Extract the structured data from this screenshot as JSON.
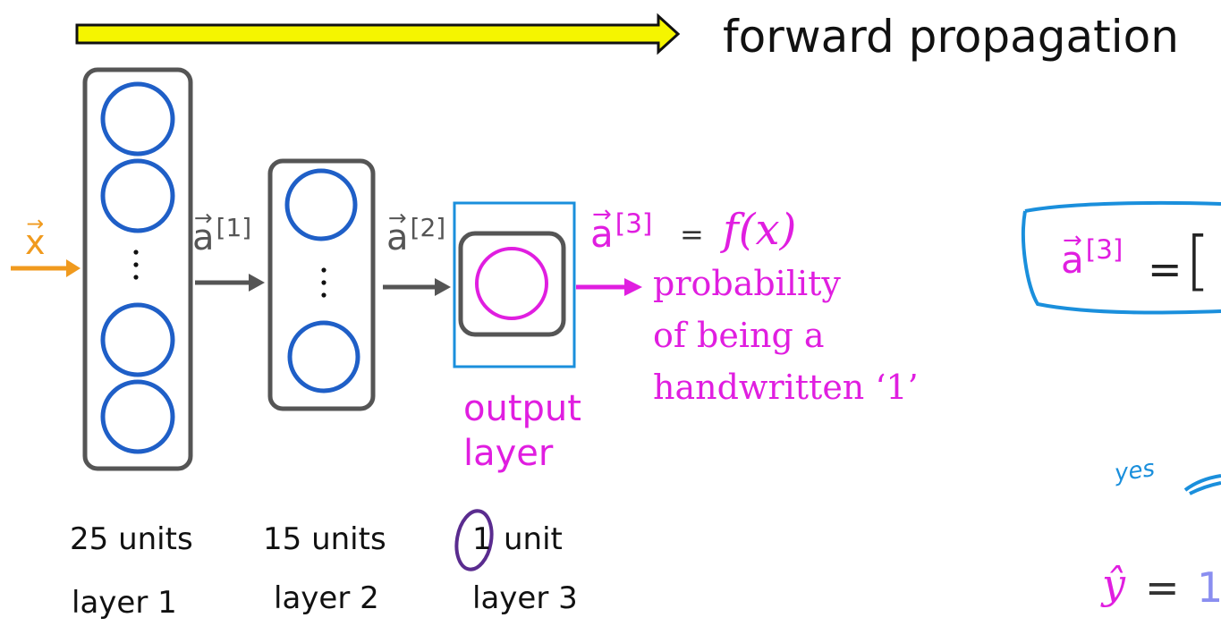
{
  "title": "forward propagation",
  "input": {
    "symbol": "x"
  },
  "activations": {
    "a1": {
      "symbol": "a",
      "sup": "[1]"
    },
    "a2": {
      "symbol": "a",
      "sup": "[2]"
    },
    "a3": {
      "symbol": "a",
      "sup": "[3]",
      "eq": "=",
      "fx": "f(x)"
    }
  },
  "output_description": {
    "line1": "probability",
    "line2": "of being a",
    "line3": "handwritten ‘1’"
  },
  "output_label": {
    "line1": "output",
    "line2": "layer"
  },
  "layers": [
    {
      "units_num": "25",
      "units_text": "units",
      "units": "25 units",
      "name": "layer 1"
    },
    {
      "units_num": "15",
      "units_text": "units",
      "units": "15 units",
      "name": "layer 2"
    },
    {
      "units_num": "1",
      "units_text": "unit",
      "units": "1 unit",
      "name": "layer 3"
    }
  ],
  "right_panel": {
    "a3": {
      "symbol": "a",
      "sup": "[3]"
    },
    "eq": "=",
    "bracket": "[",
    "yes_note": "yes",
    "yhat": "ŷ",
    "yhat_eq": "=",
    "yhat_val": "1"
  },
  "colors": {
    "neuron": "#1f5fc7",
    "box": "#555555",
    "magenta": "#e01ee0",
    "orange": "#f09a1e",
    "cyan": "#1a8fdc",
    "yellow": "#f5f500"
  }
}
